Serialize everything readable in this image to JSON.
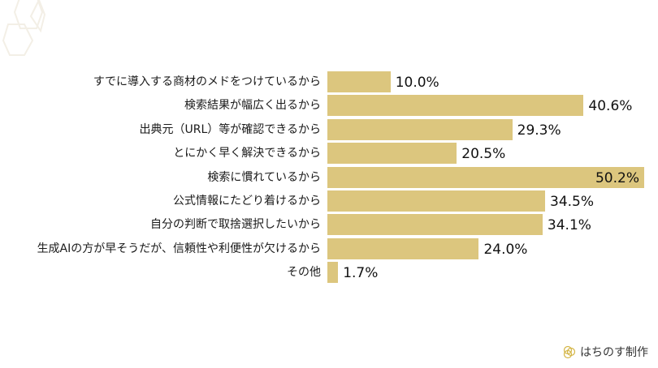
{
  "chart_data": {
    "type": "bar",
    "orientation": "horizontal",
    "title": "",
    "xlabel": "",
    "ylabel": "",
    "categories": [
      "すでに導入する商材のメドをつけているから",
      "検索結果が幅広く出るから",
      "出典元（URL）等が確認できるから",
      "とにかく早く解決できるから",
      "検索に慣れているから",
      "公式情報にたどり着けるから",
      "自分の判断で取捨選択したいから",
      "生成AIの方が早そうだが、信頼性や利便性が欠けるから",
      "その他"
    ],
    "values": [
      10.0,
      40.6,
      29.3,
      20.5,
      50.2,
      34.5,
      34.1,
      24.0,
      1.7
    ],
    "value_labels": [
      "10.0%",
      "40.6%",
      "29.3%",
      "20.5%",
      "50.2%",
      "34.5%",
      "34.1%",
      "24.0%",
      "1.7%"
    ],
    "unit": "%",
    "grid": false,
    "legend": null,
    "bar_color": "#dcc67e"
  },
  "footer": {
    "brand": "はちのす制作",
    "logo_icon": "honeycomb-logo-icon"
  }
}
